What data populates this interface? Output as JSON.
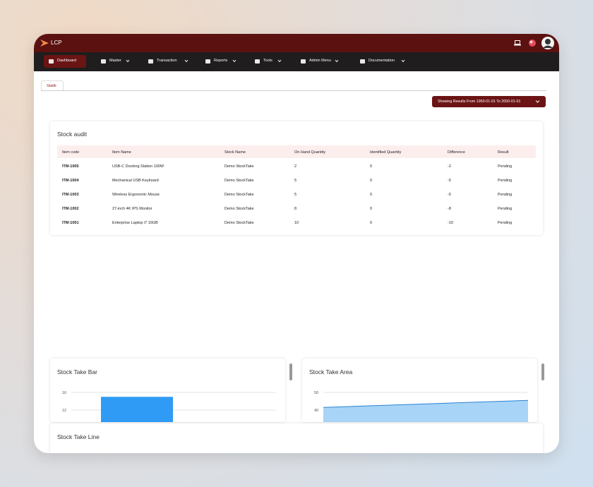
{
  "app": {
    "brand": "LCP"
  },
  "nav": [
    "Dashboard",
    "Master",
    "Transaction",
    "Reports",
    "Tools",
    "Admin Menu",
    "Documentation"
  ],
  "tabs": [
    "Statik"
  ],
  "filter_button": "Showing Results From 1950-01-01 To 2050-01-01",
  "stock_audit": {
    "title": "Stock audit",
    "columns": [
      "Item code",
      "Item Name",
      "Stock Name",
      "On Hand Quantity",
      "Identified Quantity",
      "Difference",
      "Result"
    ],
    "rows": [
      [
        "ITM-1005",
        "USB-C Docking Station 100W",
        "Demo StockTake",
        "2",
        "0",
        "-2",
        "Pending"
      ],
      [
        "ITM-1004",
        "Mechanical USB Keyboard",
        "Demo StockTake",
        "5",
        "0",
        "-5",
        "Pending"
      ],
      [
        "ITM-1003",
        "Wireless Ergonomic Mouse",
        "Demo StockTake",
        "5",
        "0",
        "-5",
        "Pending"
      ],
      [
        "ITM-1002",
        "27-inch 4K IPS Monitor",
        "Demo StockTake",
        "8",
        "0",
        "-8",
        "Pending"
      ],
      [
        "ITM-1001",
        "Enterprise Laptop i7 16GB",
        "Demo StockTake",
        "10",
        "0",
        "-10",
        "Pending"
      ]
    ]
  },
  "charts": [
    {
      "type": "bar",
      "title": "Stock Take Bar",
      "yticks": [
        16,
        12
      ],
      "values": [
        15
      ],
      "color": "#2f9bf5"
    },
    {
      "type": "area",
      "title": "Stock Take Area",
      "yticks": [
        50,
        40
      ],
      "values": [
        41.5,
        45.5
      ],
      "color": "#2a82d4"
    },
    {
      "type": "line",
      "title": "Stock Take Line"
    }
  ]
}
